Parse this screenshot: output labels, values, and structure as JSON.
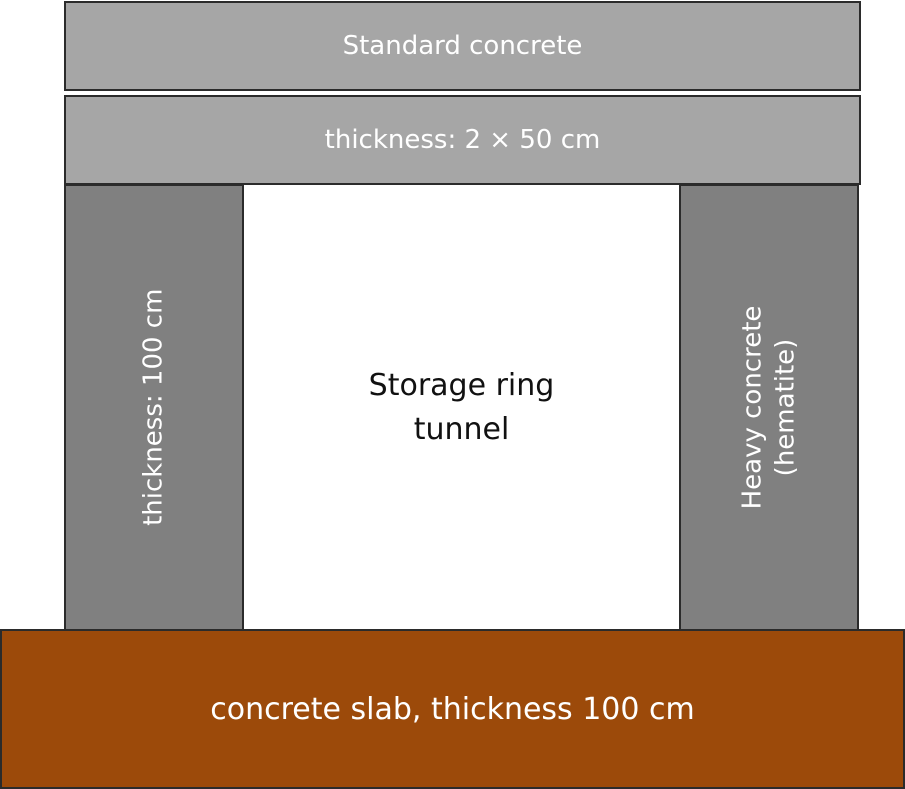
{
  "colors": {
    "light_grey": "#a6a6a6",
    "dark_grey": "#808080",
    "slab_brown": "#9c4a0a"
  },
  "top": {
    "label1": "Standard concrete",
    "label2": "thickness: 2 × 50 cm"
  },
  "walls": {
    "left_label": "thickness: 100 cm",
    "right_label_line1": "Heavy concrete",
    "right_label_line2": "(hematite)"
  },
  "tunnel": {
    "line1": "Storage ring",
    "line2": "tunnel"
  },
  "slab": {
    "label": "concrete slab, thickness 100 cm"
  }
}
